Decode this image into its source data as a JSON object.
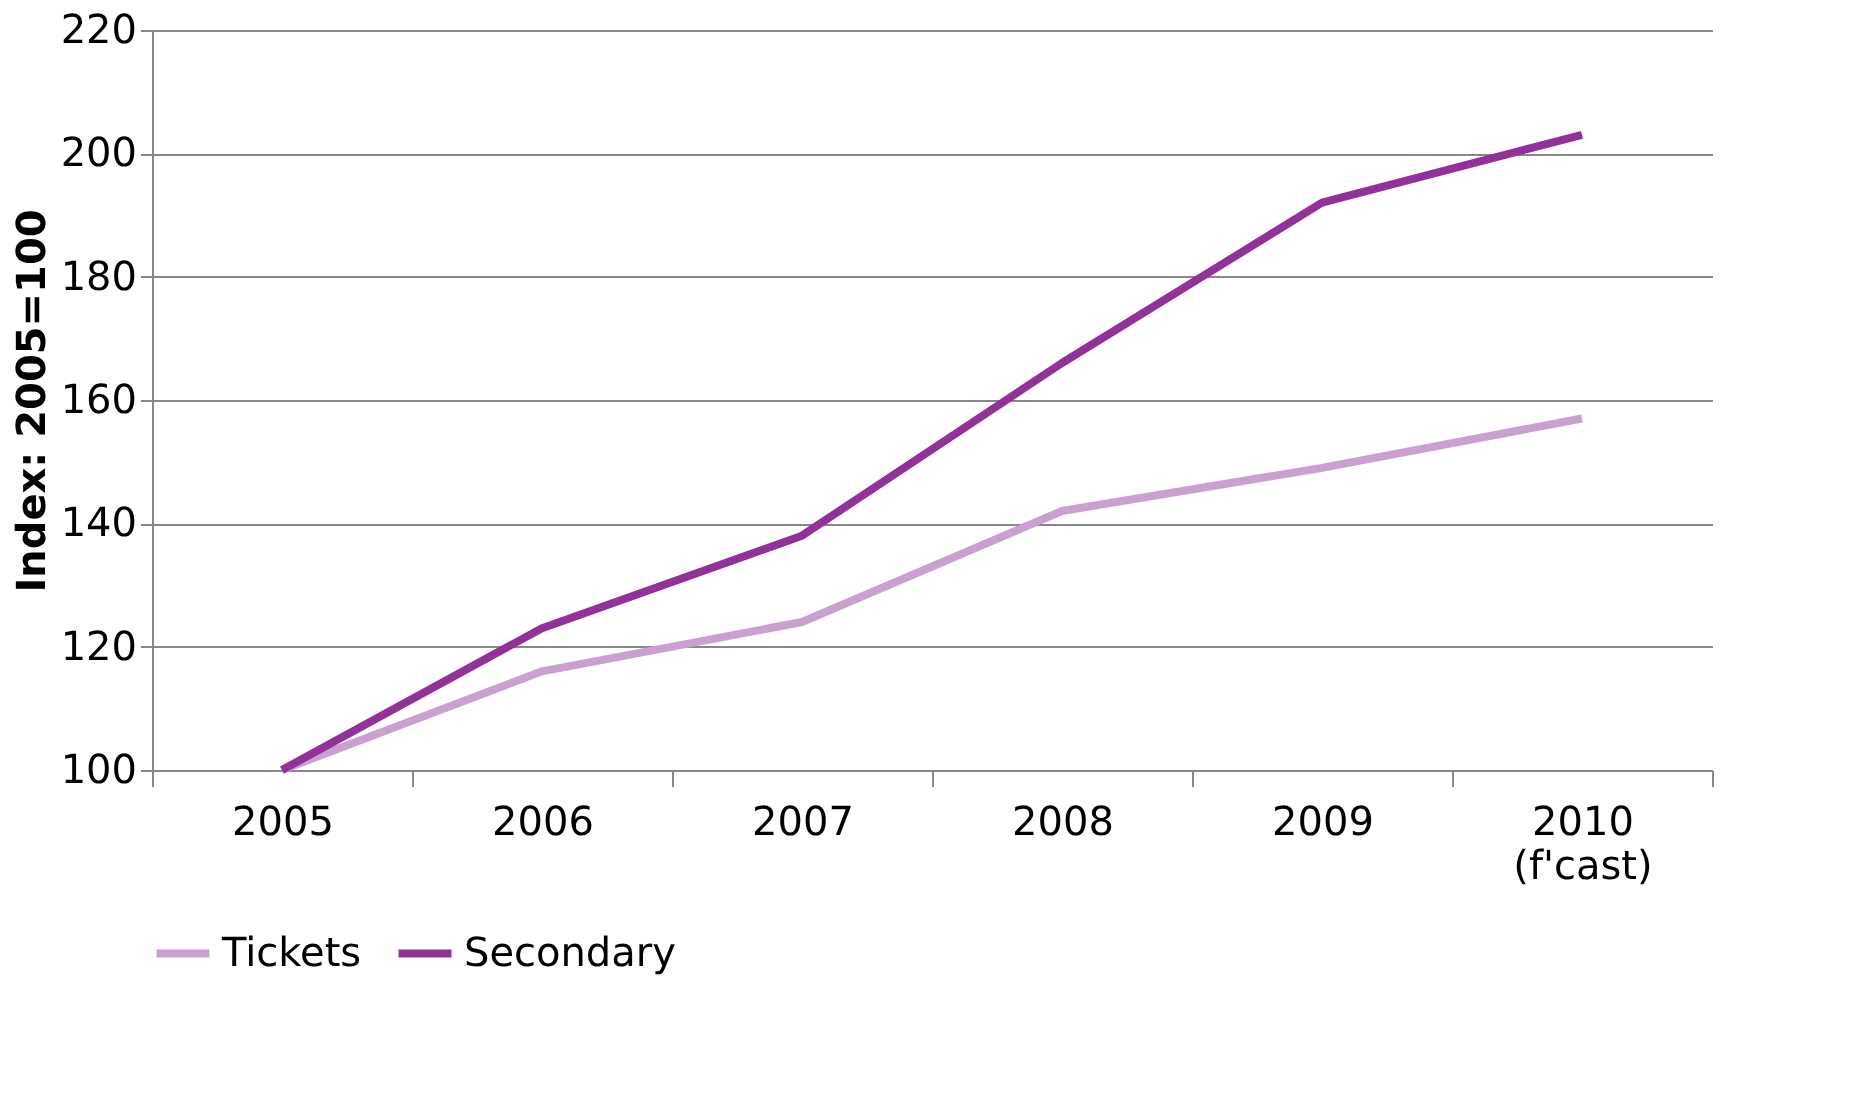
{
  "chart_data": {
    "type": "line",
    "ylabel": "Index: 2005=100",
    "categories": [
      "2005",
      "2006",
      "2007",
      "2008",
      "2009",
      "2010\n(f'cast)"
    ],
    "series": [
      {
        "name": "Tickets",
        "color": "#c9a0d0",
        "values": [
          100,
          116,
          124,
          142,
          149,
          157
        ]
      },
      {
        "name": "Secondary",
        "color": "#93319a",
        "values": [
          100,
          123,
          138,
          166,
          192,
          203
        ]
      }
    ],
    "ylim": [
      100,
      220
    ],
    "yticks": [
      100,
      120,
      140,
      160,
      180,
      200,
      220
    ],
    "grid": "y",
    "legend": "bottom",
    "marker": "none",
    "line_style": "solid"
  }
}
